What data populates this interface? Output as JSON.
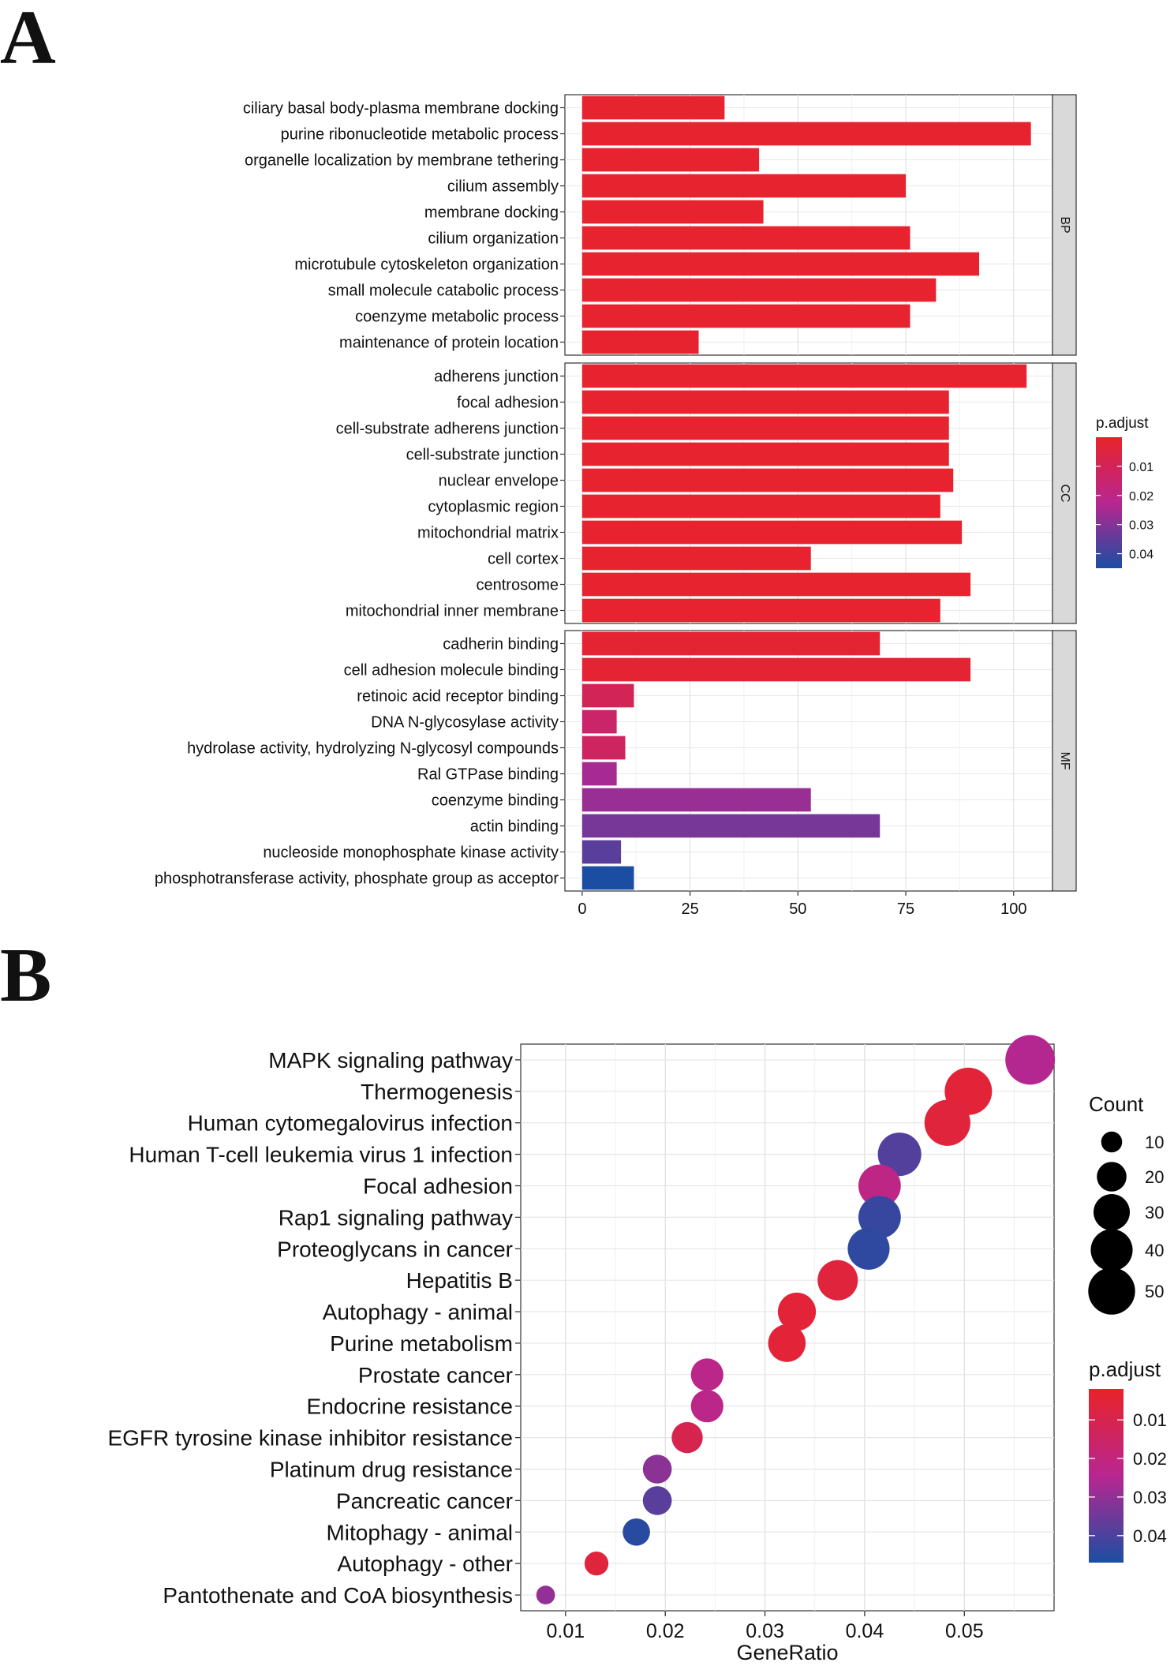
{
  "panels": {
    "a_label": "A",
    "b_label": "B"
  },
  "chart_data": [
    {
      "type": "bar",
      "orientation": "horizontal",
      "facets": [
        {
          "name": "BP",
          "categories": [
            "ciliary basal body-plasma membrane docking",
            "purine ribonucleotide metabolic process",
            "organelle localization by membrane tethering",
            "cilium assembly",
            "membrane docking",
            "cilium organization",
            "microtubule cytoskeleton organization",
            "small molecule catabolic process",
            "coenzyme metabolic process",
            "maintenance of protein location"
          ],
          "values": [
            33,
            104,
            41,
            75,
            42,
            76,
            92,
            82,
            76,
            27
          ],
          "p_adjust": [
            0.001,
            0.001,
            0.001,
            0.001,
            0.001,
            0.001,
            0.001,
            0.001,
            0.001,
            0.001
          ]
        },
        {
          "name": "CC",
          "categories": [
            "adherens junction",
            "focal adhesion",
            "cell-substrate adherens junction",
            "cell-substrate junction",
            "nuclear envelope",
            "cytoplasmic region",
            "mitochondrial matrix",
            "cell cortex",
            "centrosome",
            "mitochondrial inner membrane"
          ],
          "values": [
            103,
            85,
            85,
            85,
            86,
            83,
            88,
            53,
            90,
            83
          ],
          "p_adjust": [
            0.001,
            0.001,
            0.001,
            0.001,
            0.001,
            0.001,
            0.001,
            0.001,
            0.001,
            0.001
          ]
        },
        {
          "name": "MF",
          "categories": [
            "cadherin binding",
            "cell adhesion molecule binding",
            "retinoic acid receptor binding",
            "DNA N-glycosylase activity",
            "hydrolase activity, hydrolyzing N-glycosyl compounds",
            "Ral GTPase binding",
            "coenzyme binding",
            "actin binding",
            "nucleoside monophosphate kinase activity",
            "phosphotransferase activity, phosphate group as acceptor"
          ],
          "values": [
            69,
            90,
            12,
            8,
            10,
            8,
            53,
            69,
            9,
            12
          ],
          "p_adjust": [
            0.002,
            0.002,
            0.01,
            0.014,
            0.012,
            0.025,
            0.027,
            0.032,
            0.036,
            0.045
          ]
        }
      ],
      "x_ticks": [
        "0",
        "25",
        "50",
        "75",
        "100"
      ],
      "xlim": [
        -4,
        109
      ],
      "legend": {
        "title": "p.adjust",
        "ticks": [
          "0.01",
          "0.02",
          "0.03",
          "0.04"
        ],
        "tick_values": [
          0.01,
          0.02,
          0.03,
          0.04
        ],
        "range": [
          0,
          0.045
        ],
        "position": "right"
      },
      "colors": {
        "low": "#e8232a",
        "mid": "#b82690",
        "high": "#1b4ea3",
        "strip": "#d9d9d9"
      }
    },
    {
      "type": "scatter",
      "categories": [
        "MAPK signaling pathway",
        "Thermogenesis",
        "Human cytomegalovirus infection",
        "Human T-cell leukemia virus 1 infection",
        "Focal adhesion",
        "Rap1 signaling pathway",
        "Proteoglycans in cancer",
        "Hepatitis B",
        "Autophagy - animal",
        "Purine metabolism",
        "Prostate cancer",
        "Endocrine resistance",
        "EGFR tyrosine kinase inhibitor resistance",
        "Platinum drug resistance",
        "Pancreatic cancer",
        "Mitophagy - animal",
        "Autophagy - other",
        "Pantothenate and CoA biosynthesis"
      ],
      "x": [
        0.0566,
        0.0504,
        0.0483,
        0.0435,
        0.0415,
        0.0415,
        0.0404,
        0.0373,
        0.0332,
        0.0322,
        0.0242,
        0.0242,
        0.0222,
        0.0192,
        0.0192,
        0.0171,
        0.0131,
        0.008
      ],
      "count": [
        56,
        51,
        48,
        43,
        41,
        41,
        40,
        37,
        33,
        32,
        24,
        24,
        22,
        19,
        19,
        17,
        13,
        8
      ],
      "p_adjust": [
        0.025,
        0.005,
        0.006,
        0.039,
        0.022,
        0.043,
        0.044,
        0.006,
        0.005,
        0.005,
        0.023,
        0.023,
        0.01,
        0.031,
        0.038,
        0.045,
        0.006,
        0.03
      ],
      "xlabel": "GeneRatio",
      "x_ticks": [
        "0.01",
        "0.02",
        "0.03",
        "0.04",
        "0.05"
      ],
      "x_tick_values": [
        0.01,
        0.02,
        0.03,
        0.04,
        0.05
      ],
      "xlim": [
        0.0055,
        0.059
      ],
      "size_legend": {
        "title": "Count",
        "values": [
          10,
          20,
          30,
          40,
          50
        ],
        "labels": [
          "10",
          "20",
          "30",
          "40",
          "50"
        ]
      },
      "color_legend": {
        "title": "p.adjust",
        "ticks": [
          "0.01",
          "0.02",
          "0.03",
          "0.04"
        ],
        "tick_values": [
          0.01,
          0.02,
          0.03,
          0.04
        ],
        "range": [
          0.002,
          0.047
        ]
      },
      "colors": {
        "low": "#e8232a",
        "mid": "#b82690",
        "high": "#1b4ea3"
      }
    }
  ]
}
